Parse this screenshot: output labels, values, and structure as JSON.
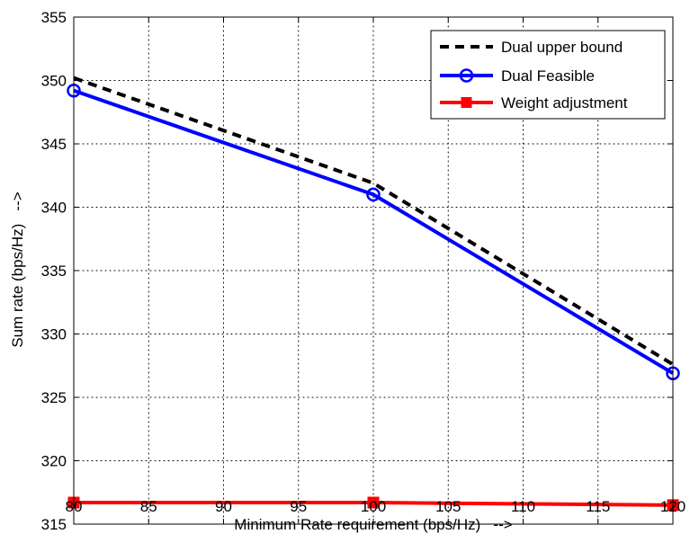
{
  "chart_data": {
    "type": "line",
    "title": "",
    "xlabel": "Minimum Rate requirement (bps/Hz)   -->",
    "ylabel": "Sum rate (bps/Hz)   -->",
    "xlim": [
      80,
      120
    ],
    "ylim": [
      315,
      355
    ],
    "x_ticks": [
      "80",
      "85",
      "90",
      "95",
      "100",
      "105",
      "110",
      "115",
      "120"
    ],
    "y_ticks": [
      "315",
      "320",
      "325",
      "330",
      "335",
      "340",
      "345",
      "350",
      "355"
    ],
    "grid": true,
    "legend_position": "top-right",
    "series": [
      {
        "name": "Dual upper bound",
        "x": [
          80,
          100,
          120
        ],
        "values": [
          350.2,
          341.9,
          327.6
        ],
        "color": "#000000",
        "line_style": "dashed",
        "marker": "none"
      },
      {
        "name": "Dual Feasible",
        "x": [
          80,
          100,
          120
        ],
        "values": [
          349.2,
          341.0,
          326.9
        ],
        "color": "#0000ff",
        "line_style": "solid",
        "marker": "circle"
      },
      {
        "name": "Weight adjustment",
        "x": [
          80,
          100,
          120
        ],
        "values": [
          316.7,
          316.7,
          316.5
        ],
        "color": "#ff0000",
        "line_style": "solid",
        "marker": "square"
      }
    ]
  }
}
